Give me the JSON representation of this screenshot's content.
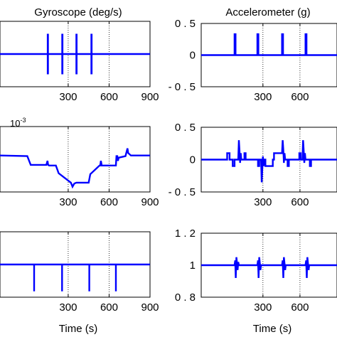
{
  "chart_data": [
    {
      "type": "line",
      "title": "Gyroscope (deg/s)",
      "xlabel": "",
      "ylabel": "",
      "xlim": [
        -200,
        900
      ],
      "ylim": [
        -1,
        1
      ],
      "xticks": [
        300,
        600,
        900
      ],
      "xtick_labels": [
        "300",
        "600",
        "900"
      ],
      "yticks": [],
      "ytick_labels": [],
      "grid": "vertical-dotted",
      "series": [
        {
          "color": "#0000ff",
          "x": [
            -200,
            150,
            150,
            150,
            150,
            150,
            150,
            152,
            152,
            152,
            152,
            152,
            152,
            256,
            256,
            256,
            256,
            256,
            256,
            258,
            258,
            258,
            258,
            258,
            258,
            360,
            360,
            360,
            360,
            360,
            360,
            362,
            362,
            362,
            362,
            362,
            362,
            470,
            470,
            470,
            470,
            470,
            470,
            472,
            472,
            472,
            472,
            472,
            472,
            900
          ],
          "y": [
            0,
            0,
            0.62,
            0,
            -0.62,
            0,
            0,
            0,
            0.62,
            0,
            -0.62,
            0,
            0,
            0,
            0.62,
            0,
            -0.62,
            0,
            0,
            0,
            0.62,
            0,
            -0.62,
            0,
            0,
            0,
            0.62,
            0,
            -0.62,
            0,
            0,
            0,
            0.62,
            0,
            -0.62,
            0,
            0,
            0,
            0.62,
            0,
            -0.62,
            0,
            0,
            0,
            0.62,
            0,
            -0.62,
            0,
            0,
            0
          ]
        }
      ]
    },
    {
      "type": "line",
      "title": "Accelerometer (g)",
      "xlabel": "",
      "ylabel": "",
      "xlim": [
        -200,
        900
      ],
      "ylim": [
        -0.5,
        0.5
      ],
      "xticks": [
        300,
        600
      ],
      "xtick_labels": [
        "300",
        "600"
      ],
      "yticks": [
        -0.5,
        0,
        0.5
      ],
      "ytick_labels": [
        "- 0 . 5",
        "0",
        "0 . 5"
      ],
      "grid": "vertical-dotted",
      "series": [
        {
          "color": "#0000ff",
          "x": [
            -200,
            70,
            70,
            78,
            78,
            255,
            255,
            263,
            263,
            455,
            455,
            463,
            463,
            645,
            645,
            653,
            653,
            900
          ],
          "y": [
            0,
            0,
            0.33,
            0.33,
            0,
            0,
            0.33,
            0.33,
            0,
            0,
            0.33,
            0.33,
            0,
            0,
            0.33,
            0.33,
            0,
            0
          ]
        }
      ]
    },
    {
      "type": "line",
      "title": "",
      "xlabel": "",
      "ylabel": "",
      "multiplier": "10",
      "multiplier_exp": "-3",
      "xlim": [
        -200,
        900
      ],
      "ylim": [
        -1.05,
        1.05
      ],
      "xticks": [
        300,
        600,
        900
      ],
      "xtick_labels": [
        "300",
        "600",
        "900"
      ],
      "yticks": [],
      "ytick_labels": [],
      "grid": "vertical-dotted",
      "series": [
        {
          "color": "#0000ff",
          "x": [
            -200,
            0,
            25,
            140,
            148,
            153,
            160,
            210,
            230,
            320,
            332,
            345,
            360,
            450,
            462,
            530,
            535,
            540,
            546,
            560,
            650,
            654,
            660,
            665,
            670,
            720,
            735,
            740,
            760,
            900
          ],
          "y": [
            0.12,
            0.1,
            -0.18,
            -0.18,
            -0.05,
            -0.18,
            -0.2,
            -0.2,
            -0.45,
            -0.75,
            -0.88,
            -0.78,
            -0.75,
            -0.75,
            -0.48,
            -0.2,
            -0.2,
            -0.05,
            -0.2,
            -0.2,
            -0.2,
            0.1,
            0.1,
            -0.05,
            0.05,
            0.1,
            0.35,
            0.2,
            0.12,
            0.12
          ]
        }
      ]
    },
    {
      "type": "line",
      "title": "",
      "xlabel": "",
      "ylabel": "",
      "xlim": [
        -200,
        900
      ],
      "ylim": [
        -0.5,
        0.5
      ],
      "xticks": [
        300,
        600
      ],
      "xtick_labels": [
        "300",
        "600"
      ],
      "yticks": [
        -0.5,
        0,
        0.5
      ],
      "ytick_labels": [
        "- 0 . 5",
        "0",
        "0 . 5"
      ],
      "grid": "vertical-dotted",
      "series": [
        {
          "color": "#0000ff",
          "x": [
            -200,
            10,
            10,
            30,
            30,
            55,
            55,
            70,
            70,
            100,
            105,
            110,
            115,
            120,
            125,
            150,
            150,
            160,
            160,
            260,
            260,
            270,
            270,
            285,
            290,
            295,
            300,
            305,
            310,
            320,
            320,
            380,
            380,
            390,
            390,
            455,
            460,
            465,
            470,
            475,
            480,
            500,
            500,
            510,
            510,
            595,
            595,
            605,
            605,
            620,
            625,
            630,
            635,
            640,
            645,
            680,
            680,
            690,
            690,
            900
          ],
          "y": [
            0,
            0,
            0.1,
            0.1,
            0,
            0,
            -0.1,
            -0.1,
            0,
            0,
            0.3,
            0.15,
            -0.05,
            0.1,
            0,
            0,
            0.1,
            0.1,
            0,
            0,
            -0.1,
            -0.1,
            0,
            0,
            -0.35,
            -0.15,
            0.05,
            -0.1,
            0,
            0,
            -0.1,
            -0.1,
            0,
            0,
            0.1,
            0.1,
            0.3,
            0.15,
            -0.05,
            0.1,
            0,
            0,
            -0.1,
            -0.1,
            0,
            0,
            0.1,
            0.1,
            0,
            0,
            0.3,
            0.15,
            -0.05,
            0.1,
            0,
            0,
            -0.1,
            -0.1,
            0,
            0
          ]
        }
      ]
    },
    {
      "type": "line",
      "title": "",
      "xlabel": "Time (s)",
      "ylabel": "",
      "xlim": [
        -200,
        900
      ],
      "ylim": [
        -1,
        1
      ],
      "xticks": [
        300,
        600,
        900
      ],
      "xtick_labels": [
        "300",
        "600",
        "900"
      ],
      "yticks": [],
      "ytick_labels": [],
      "grid": "vertical-dotted",
      "series": [
        {
          "color": "#0000ff",
          "x": [
            -200,
            50,
            50,
            50,
            50,
            255,
            255,
            255,
            255,
            455,
            455,
            455,
            455,
            650,
            650,
            650,
            650,
            900
          ],
          "y": [
            0,
            0,
            -0.82,
            0,
            0,
            0,
            -0.82,
            0,
            0,
            0,
            -0.82,
            0,
            0,
            0,
            -0.82,
            0,
            0,
            0
          ]
        }
      ]
    },
    {
      "type": "line",
      "title": "",
      "xlabel": "Time (s)",
      "ylabel": "",
      "xlim": [
        -200,
        900
      ],
      "ylim": [
        0.8,
        1.2
      ],
      "xticks": [
        300,
        600
      ],
      "xtick_labels": [
        "300",
        "600"
      ],
      "yticks": [
        0.8,
        1,
        1.2
      ],
      "ytick_labels": [
        "0 . 8",
        "1",
        "1 . 2"
      ],
      "grid": "vertical-dotted",
      "series": [
        {
          "color": "#0000ff",
          "x": [
            -200,
            70,
            75,
            80,
            85,
            90,
            95,
            100,
            105,
            255,
            260,
            265,
            270,
            275,
            280,
            285,
            455,
            460,
            465,
            470,
            475,
            480,
            485,
            645,
            650,
            655,
            660,
            665,
            670,
            675,
            900
          ],
          "y": [
            1,
            1,
            1.03,
            0.92,
            1.05,
            1.01,
            0.97,
            1.02,
            1,
            1,
            1.03,
            0.92,
            1.05,
            1.01,
            0.97,
            1,
            1,
            1.03,
            0.92,
            1.05,
            1.01,
            0.97,
            1,
            1,
            1.03,
            0.92,
            1.05,
            1.01,
            0.97,
            1,
            1
          ]
        }
      ]
    }
  ]
}
